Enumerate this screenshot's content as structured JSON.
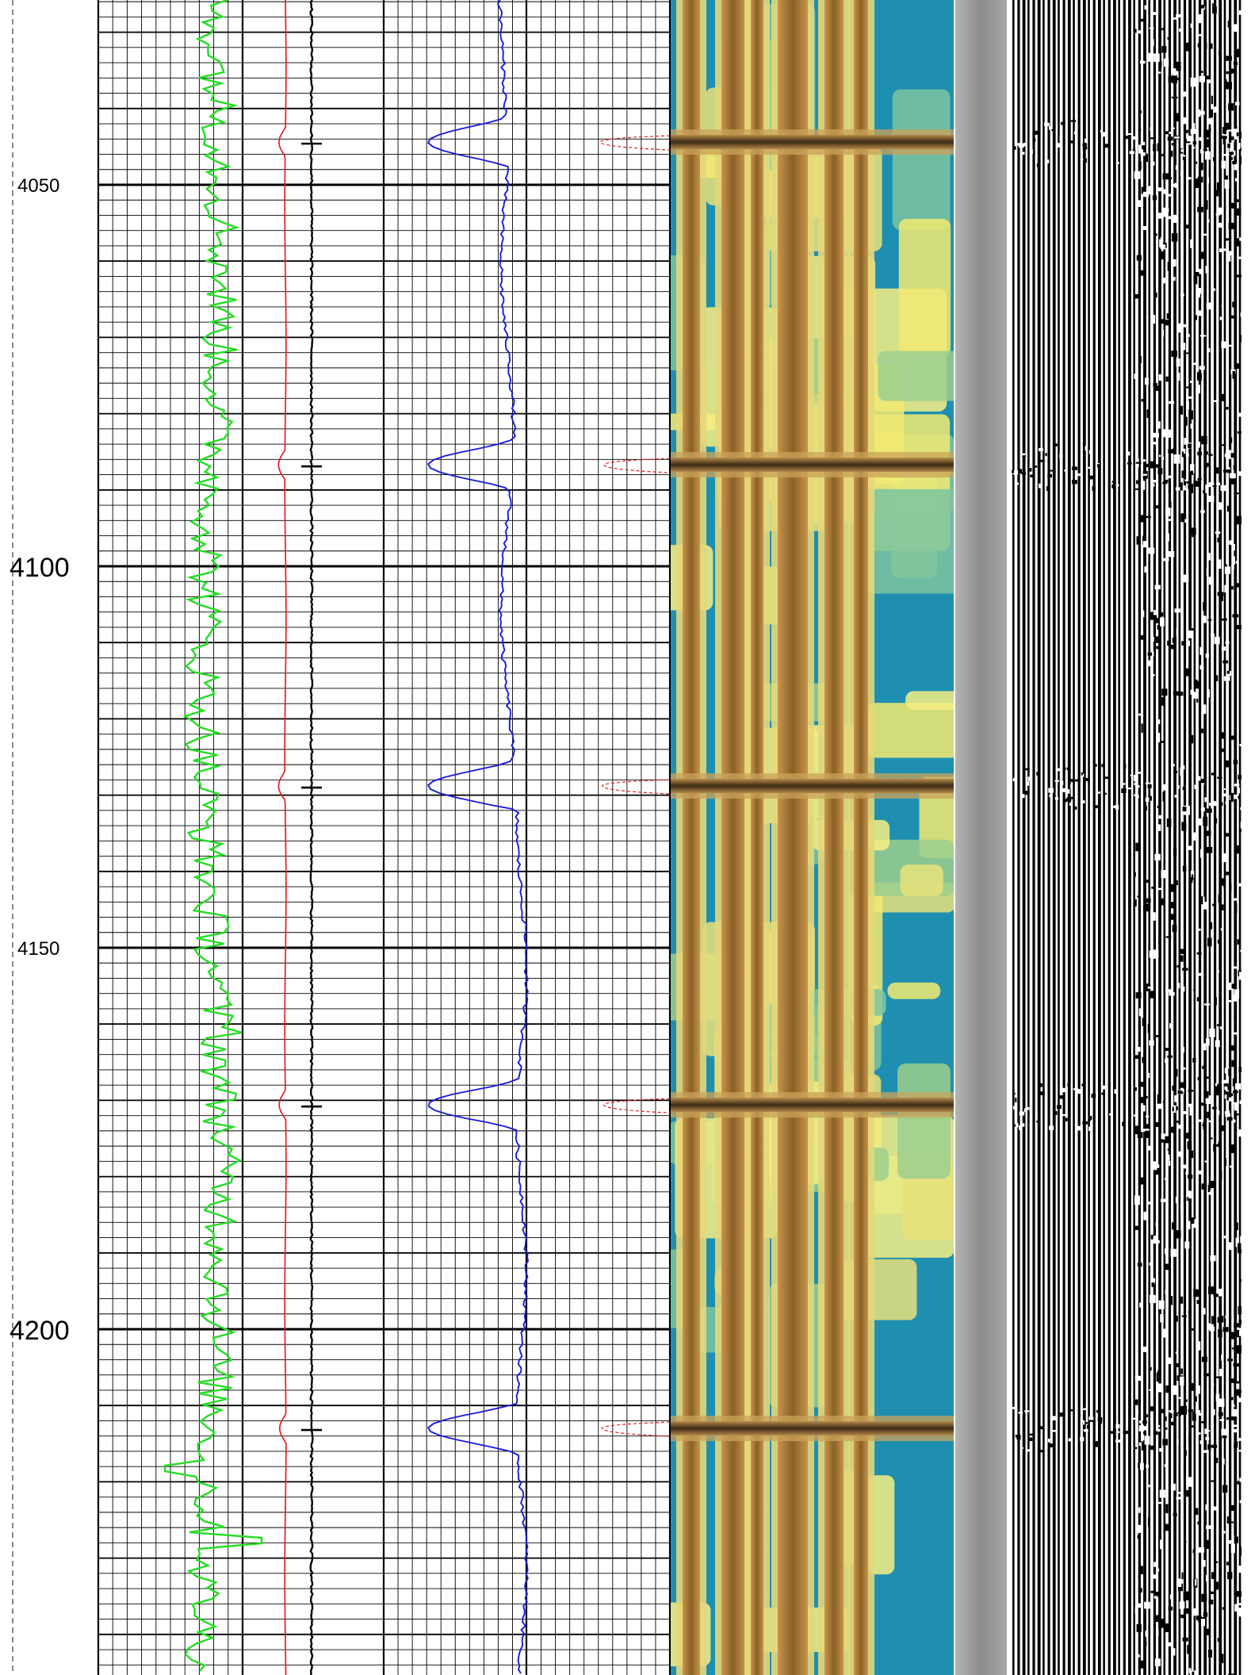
{
  "depth_track": {
    "labels": [
      {
        "text": "4050",
        "depth": 4050,
        "style": "minor"
      },
      {
        "text": "4100",
        "depth": 4100,
        "style": "major"
      },
      {
        "text": "4150",
        "depth": 4150,
        "style": "minor"
      },
      {
        "text": "4200",
        "depth": 4200,
        "style": "major"
      }
    ]
  },
  "chart_data": {
    "type": "line",
    "ylim": [
      4026,
      4245
    ],
    "y_direction": "downward",
    "title": "",
    "series": [
      {
        "id": "green-curve",
        "color": "#22dd22"
      },
      {
        "id": "red-curve",
        "color": "#e32020"
      },
      {
        "id": "black-curve",
        "color": "#000000"
      },
      {
        "id": "blue-curve",
        "color": "#1a1adc"
      }
    ],
    "collar_depths": [
      4044.4,
      4086.7,
      4128.8,
      4170.6,
      4213.0
    ],
    "palette": {
      "image_low": "#1e8fb0",
      "image_mid": "#f2ea72",
      "image_high": "#6e4a22",
      "separator": "#9a9a9a",
      "grid": "#000000"
    }
  }
}
